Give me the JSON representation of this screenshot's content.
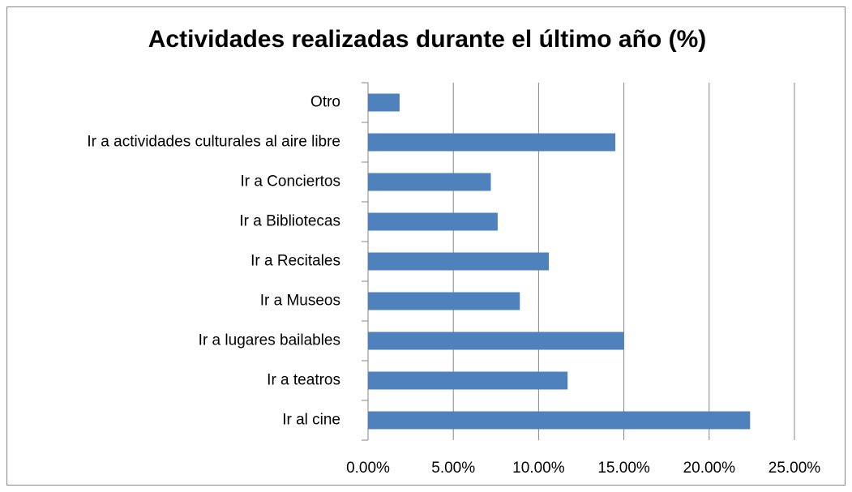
{
  "chart_data": {
    "type": "barh",
    "title": "Actividades realizadas durante el último año (%)",
    "categories": [
      "Ir al cine",
      "Ir a teatros",
      "Ir a lugares bailables",
      "Ir a Museos",
      "Ir a Recitales",
      "Ir a Bibliotecas",
      "Ir a Conciertos",
      "Ir a actividades culturales al aire libre",
      "Otro"
    ],
    "values": [
      22.4,
      11.7,
      15.0,
      8.9,
      10.6,
      7.6,
      7.2,
      14.5,
      1.85
    ],
    "color": "#4f81bd",
    "xlim": [
      0,
      25
    ],
    "xticks": [
      {
        "value": 0,
        "label": "0.00%"
      },
      {
        "value": 5,
        "label": "5.00%"
      },
      {
        "value": 10,
        "label": "10.00%"
      },
      {
        "value": 15,
        "label": "15.00%"
      },
      {
        "value": 20,
        "label": "20.00%"
      },
      {
        "value": 25,
        "label": "25.00%"
      }
    ],
    "grid": true
  }
}
